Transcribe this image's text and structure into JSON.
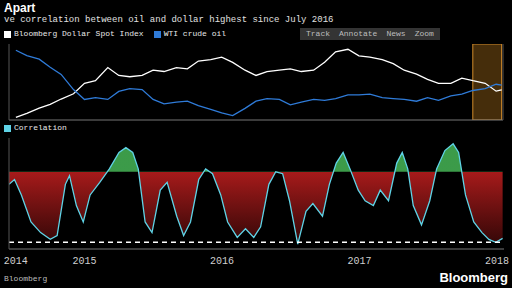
{
  "title": "Apart",
  "subtitle": "ve correlation between oil and dollar highest since July 2016",
  "toolbar": [
    "Track",
    "Annotate",
    "News",
    "Zoom"
  ],
  "source": "Bloomberg",
  "logo": "Bloomberg",
  "chart_data": [
    {
      "type": "line",
      "legend": "top-left",
      "tick_labels": false,
      "x": [
        2014.5,
        2014.58,
        2014.67,
        2014.75,
        2014.83,
        2014.92,
        2015.0,
        2015.08,
        2015.17,
        2015.25,
        2015.33,
        2015.42,
        2015.5,
        2015.58,
        2015.67,
        2015.75,
        2015.83,
        2015.92,
        2016.0,
        2016.08,
        2016.17,
        2016.25,
        2016.33,
        2016.42,
        2016.5,
        2016.58,
        2016.67,
        2016.75,
        2016.83,
        2016.92,
        2017.0,
        2017.08,
        2017.17,
        2017.25,
        2017.33,
        2017.42,
        2017.5,
        2017.58,
        2017.67,
        2017.75,
        2017.83,
        2017.92,
        2018.0,
        2018.04
      ],
      "xlim": [
        2014.45,
        2018.05
      ],
      "ylim": [
        1000,
        1290
      ],
      "y2lim": [
        25,
        110
      ],
      "highlight": [
        2017.83,
        2018.04
      ],
      "series": [
        {
          "name": "Bloomberg Dollar Spot Index",
          "color": "#ffffff",
          "values": [
            1010,
            1025,
            1045,
            1060,
            1080,
            1100,
            1140,
            1150,
            1200,
            1170,
            1165,
            1170,
            1190,
            1185,
            1200,
            1195,
            1225,
            1230,
            1240,
            1220,
            1190,
            1170,
            1185,
            1190,
            1195,
            1185,
            1190,
            1220,
            1260,
            1270,
            1245,
            1240,
            1230,
            1215,
            1190,
            1175,
            1155,
            1140,
            1140,
            1160,
            1150,
            1140,
            1110,
            1115
          ]
        },
        {
          "name": "WTI crude oil",
          "color": "#2f7bd8",
          "axis": "y2",
          "values": [
            103,
            97,
            93,
            84,
            76,
            59,
            48,
            50,
            48,
            57,
            60,
            59,
            48,
            43,
            45,
            46,
            41,
            37,
            33,
            30,
            38,
            46,
            49,
            48,
            42,
            45,
            48,
            47,
            49,
            53,
            53,
            54,
            50,
            49,
            48,
            46,
            50,
            47,
            52,
            54,
            58,
            60,
            65,
            64
          ]
        }
      ]
    },
    {
      "type": "area",
      "legend": "top-left",
      "tick_labels": "x",
      "x": [
        2014.45,
        2014.49,
        2014.54,
        2014.61,
        2014.68,
        2014.75,
        2014.8,
        2014.86,
        2014.89,
        2014.94,
        2014.99,
        2015.04,
        2015.11,
        2015.18,
        2015.25,
        2015.3,
        2015.35,
        2015.39,
        2015.44,
        2015.49,
        2015.55,
        2015.6,
        2015.67,
        2015.72,
        2015.77,
        2015.83,
        2015.88,
        2015.93,
        2015.99,
        2016.04,
        2016.11,
        2016.17,
        2016.23,
        2016.28,
        2016.34,
        2016.39,
        2016.44,
        2016.49,
        2016.55,
        2016.61,
        2016.66,
        2016.73,
        2016.78,
        2016.83,
        2016.88,
        2016.93,
        2016.99,
        2017.04,
        2017.1,
        2017.15,
        2017.21,
        2017.27,
        2017.31,
        2017.35,
        2017.39,
        2017.45,
        2017.51,
        2017.56,
        2017.62,
        2017.68,
        2017.72,
        2017.77,
        2017.83,
        2017.89,
        2017.94,
        2017.99,
        2018.04
      ],
      "xlim": [
        2014.45,
        2018.05
      ],
      "xticks": [
        {
          "value": 2014.5,
          "label": "2014"
        },
        2015,
        2016,
        2017,
        2018
      ],
      "ylim": [
        -0.8,
        0.35
      ],
      "threshold": -0.73,
      "series": [
        {
          "name": "Correlation",
          "color": "#5fd3e6",
          "values": [
            -0.13,
            -0.08,
            -0.24,
            -0.52,
            -0.63,
            -0.7,
            -0.66,
            -0.13,
            -0.04,
            -0.35,
            -0.52,
            -0.24,
            -0.11,
            0.03,
            0.2,
            0.25,
            0.2,
            0.03,
            -0.52,
            -0.63,
            -0.19,
            -0.11,
            -0.46,
            -0.66,
            -0.52,
            -0.08,
            0.03,
            -0.02,
            -0.24,
            -0.52,
            -0.68,
            -0.59,
            -0.68,
            -0.57,
            -0.13,
            0,
            -0.02,
            -0.3,
            -0.75,
            -0.41,
            -0.33,
            -0.46,
            -0.13,
            0.09,
            0.2,
            0.03,
            -0.19,
            -0.3,
            -0.35,
            -0.19,
            -0.3,
            0.09,
            0.2,
            0.03,
            -0.35,
            -0.55,
            -0.3,
            0.03,
            0.22,
            0.29,
            0.2,
            -0.24,
            -0.52,
            -0.63,
            -0.7,
            -0.73,
            -0.69
          ]
        }
      ]
    }
  ]
}
